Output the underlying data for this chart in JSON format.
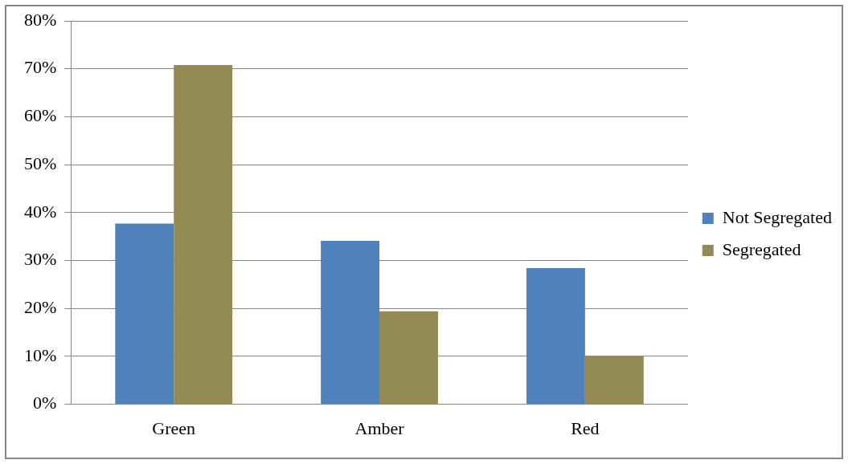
{
  "chart_data": {
    "type": "bar",
    "categories": [
      "Green",
      "Amber",
      "Red"
    ],
    "series": [
      {
        "name": "Not Segregated",
        "color": "#4f81bd",
        "values": [
          37.7,
          34.1,
          28.4
        ]
      },
      {
        "name": "Segregated",
        "color": "#948a54",
        "values": [
          70.8,
          19.4,
          10.0
        ]
      }
    ],
    "ylim": [
      0,
      80
    ],
    "yticks": [
      {
        "value": 0,
        "label": "0%"
      },
      {
        "value": 10,
        "label": "10%"
      },
      {
        "value": 20,
        "label": "20%"
      },
      {
        "value": 30,
        "label": "30%"
      },
      {
        "value": 40,
        "label": "40%"
      },
      {
        "value": 50,
        "label": "50%"
      },
      {
        "value": 60,
        "label": "60%"
      },
      {
        "value": 70,
        "label": "70%"
      },
      {
        "value": 80,
        "label": "80%"
      }
    ],
    "grid": "y",
    "legend": "right"
  }
}
